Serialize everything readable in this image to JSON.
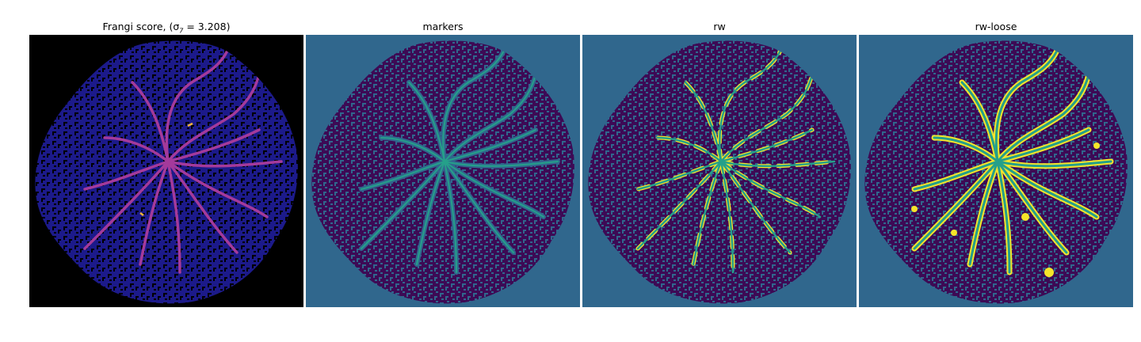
{
  "figure": {
    "panels": [
      {
        "title": "Frangi score, (σ",
        "title_sub": "7",
        "title_tail": " = 3.208)",
        "colormap": "plasma"
      },
      {
        "title": "markers",
        "colormap": "viridis"
      },
      {
        "title": "rw",
        "colormap": "viridis"
      },
      {
        "title": "rw-loose",
        "colormap": "viridis"
      }
    ]
  },
  "colors": {
    "background_black": "#000000",
    "frangi_dark_blue": "#1c1a8a",
    "frangi_vessel": "#a43a9b",
    "frangi_hot": "#f3b43a",
    "viridis_background": "#30678d",
    "viridis_tissue": "#3d0a55",
    "viridis_vessel_core": "#25a08a",
    "viridis_vessel_edge": "#f5e52a"
  }
}
